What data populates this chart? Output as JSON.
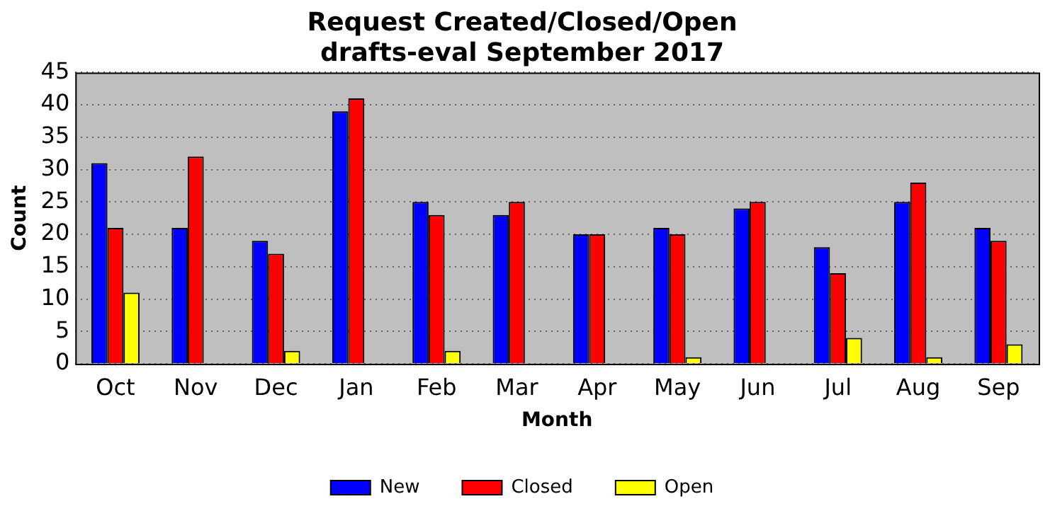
{
  "chart_data": {
    "type": "bar",
    "title": "Request Created/Closed/Open",
    "subtitle": "drafts-eval September 2017",
    "xlabel": "Month",
    "ylabel": "Count",
    "categories": [
      "Oct",
      "Nov",
      "Dec",
      "Jan",
      "Feb",
      "Mar",
      "Apr",
      "May",
      "Jun",
      "Jul",
      "Aug",
      "Sep"
    ],
    "series": [
      {
        "name": "New",
        "color": "#0000ff",
        "values": [
          31,
          21,
          19,
          39,
          25,
          23,
          20,
          21,
          24,
          18,
          25,
          21
        ]
      },
      {
        "name": "Closed",
        "color": "#ff0000",
        "values": [
          21,
          32,
          17,
          41,
          23,
          25,
          20,
          20,
          25,
          14,
          28,
          19
        ]
      },
      {
        "name": "Open",
        "color": "#ffff00",
        "values": [
          11,
          0,
          2,
          0,
          2,
          0,
          0,
          1,
          0,
          4,
          1,
          3
        ]
      }
    ],
    "ylim": [
      0,
      45
    ],
    "yticks": [
      0,
      5,
      10,
      15,
      20,
      25,
      30,
      35,
      40,
      45
    ],
    "grid": "y",
    "legend": "bottom"
  }
}
